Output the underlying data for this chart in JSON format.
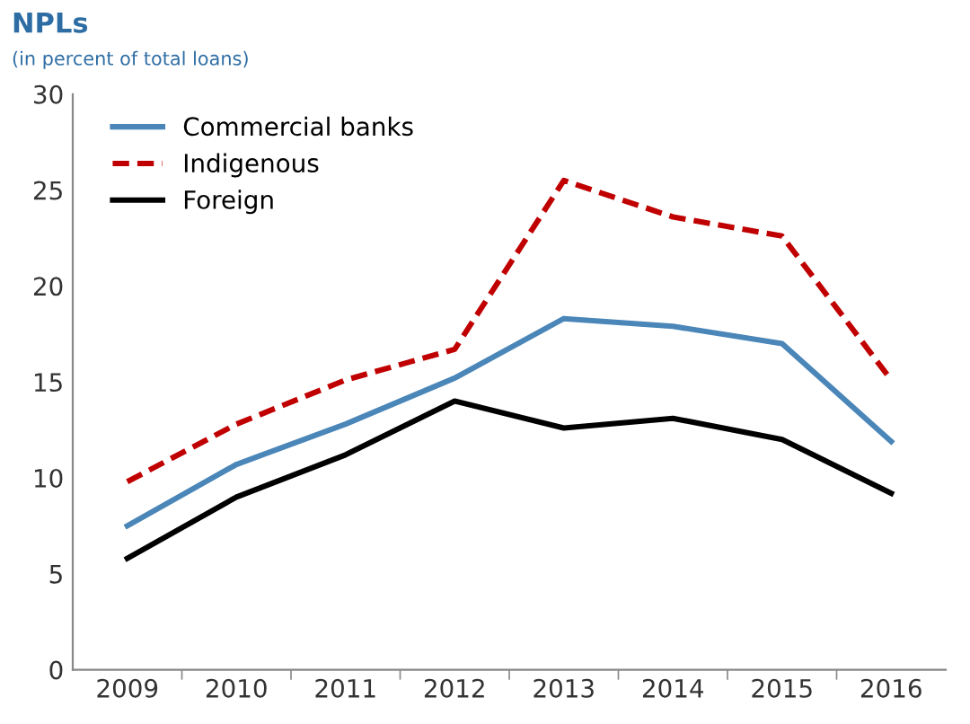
{
  "chart_data": {
    "type": "line",
    "title": "NPLs",
    "subtitle": "(in percent of total loans)",
    "categories": [
      "2009",
      "2010",
      "2011",
      "2012",
      "2013",
      "2014",
      "2015",
      "2016"
    ],
    "series": [
      {
        "name": "Commercial banks",
        "color": "#4a86b8",
        "line_style": "solid",
        "values": [
          7.5,
          10.7,
          12.8,
          15.2,
          18.3,
          17.9,
          17.0,
          11.9
        ]
      },
      {
        "name": "Indigenous",
        "color": "#c00000",
        "line_style": "dashed",
        "values": [
          9.8,
          12.8,
          15.1,
          16.7,
          25.5,
          23.6,
          22.6,
          15.1
        ]
      },
      {
        "name": "Foreign",
        "color": "#000000",
        "line_style": "solid",
        "values": [
          5.8,
          9.0,
          11.2,
          14.0,
          12.6,
          13.1,
          12.0,
          9.2
        ]
      }
    ],
    "ylim": [
      0,
      30
    ],
    "yticks": [
      0,
      5,
      10,
      15,
      20,
      25,
      30
    ],
    "grid": false,
    "legend": "top left"
  }
}
